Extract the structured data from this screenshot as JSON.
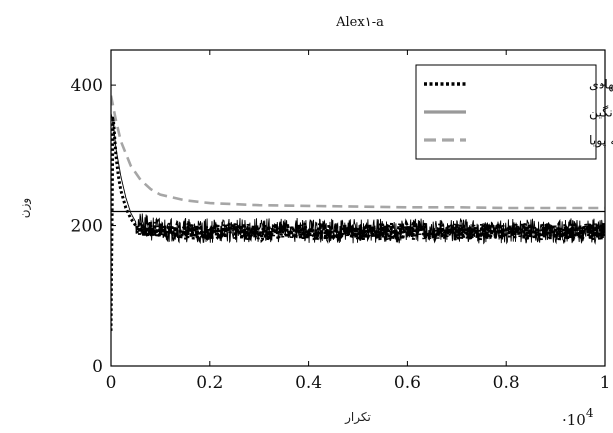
{
  "chart_data": {
    "type": "line",
    "title": "Alex۱-a",
    "xlabel": "تکرار",
    "ylabel": "وزن",
    "x_scale_note": "·10",
    "x_scale_exponent": "4",
    "xlim": [
      0,
      1
    ],
    "ylim": [
      0,
      450
    ],
    "x_ticks": [
      0,
      0.2,
      0.4,
      0.6,
      0.8,
      1
    ],
    "x_tick_labels": [
      "0",
      "0.2",
      "0.4",
      "0.6",
      "0.8",
      "1"
    ],
    "y_ticks": [
      0,
      200,
      400
    ],
    "y_tick_labels": [
      "0",
      "200",
      "400"
    ],
    "grid": false,
    "legend_position": "top-right",
    "reference_line": 220,
    "series": [
      {
        "name": "آستانه پیشنهادی",
        "style": "dotted",
        "color": "#000000",
        "x": [
          0,
          0.002,
          0.004,
          0.006,
          0.01,
          0.015,
          0.02,
          0.03,
          0.04,
          0.05,
          0.06,
          0.08,
          0.1,
          0.15,
          0.2,
          0.3,
          0.4,
          0.5,
          0.6,
          0.7,
          0.8,
          0.9,
          1.0
        ],
        "y": [
          50,
          200,
          360,
          340,
          300,
          270,
          250,
          225,
          210,
          200,
          196,
          194,
          193,
          192,
          192,
          191,
          192,
          191,
          192,
          191,
          192,
          191,
          192
        ]
      },
      {
        "name": "میانگین",
        "style": "solid",
        "color": "#999999",
        "x": [
          0,
          0.005,
          0.01,
          0.02,
          0.03,
          0.04,
          0.05,
          0.06,
          0.08,
          0.1,
          0.15,
          0.2,
          0.3,
          0.4,
          0.5,
          0.6,
          0.7,
          0.8,
          0.9,
          1.0
        ],
        "y": [
          360,
          345,
          310,
          270,
          240,
          218,
          205,
          200,
          196,
          195,
          194,
          193,
          193,
          193,
          192,
          193,
          192,
          193,
          192,
          193
        ]
      },
      {
        "name": "مقدار آستانه پویا",
        "style": "dashed",
        "color": "#a6a6a6",
        "x": [
          0,
          0.01,
          0.02,
          0.04,
          0.06,
          0.08,
          0.1,
          0.15,
          0.2,
          0.3,
          0.4,
          0.5,
          0.6,
          0.7,
          0.8,
          0.9,
          1.0
        ],
        "y": [
          385,
          350,
          320,
          285,
          265,
          252,
          244,
          236,
          232,
          229,
          228,
          227,
          226,
          226,
          225,
          225,
          225
        ]
      }
    ]
  }
}
